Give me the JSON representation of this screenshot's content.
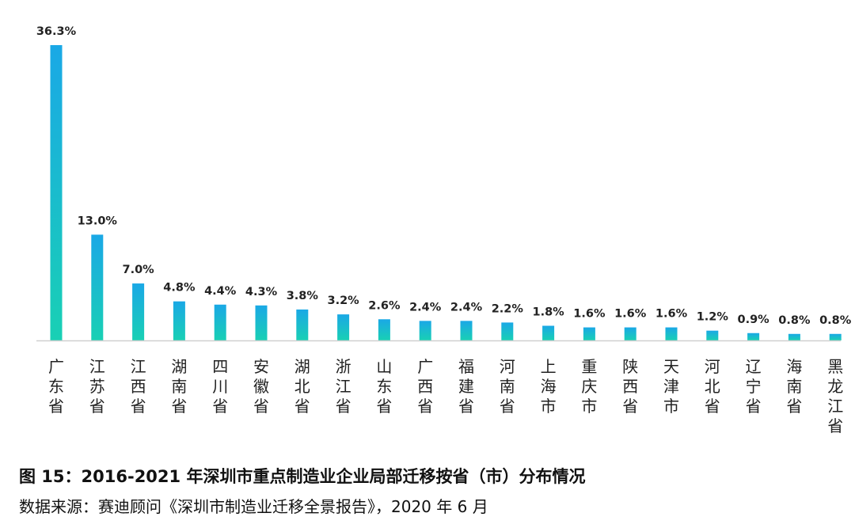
{
  "chart_data": {
    "type": "bar",
    "categories": [
      "广东省",
      "江苏省",
      "江西省",
      "湖南省",
      "四川省",
      "安徽省",
      "湖北省",
      "浙江省",
      "山东省",
      "广西省",
      "福建省",
      "河南省",
      "上海市",
      "重庆市",
      "陕西省",
      "天津市",
      "河北省",
      "辽宁省",
      "海南省",
      "黑龙江省"
    ],
    "values": [
      36.3,
      13.0,
      7.0,
      4.8,
      4.4,
      4.3,
      3.8,
      3.2,
      2.6,
      2.4,
      2.4,
      2.2,
      1.8,
      1.6,
      1.6,
      1.6,
      1.2,
      0.9,
      0.8,
      0.8
    ],
    "data_labels": [
      "36.3%",
      "13.0%",
      "7.0%",
      "4.8%",
      "4.4%",
      "4.3%",
      "3.8%",
      "3.2%",
      "2.6%",
      "2.4%",
      "2.4%",
      "2.2%",
      "1.8%",
      "1.6%",
      "1.6%",
      "1.6%",
      "1.2%",
      "0.9%",
      "0.8%",
      "0.8%"
    ],
    "ylim": [
      0,
      36.3
    ],
    "grid": false,
    "colors": {
      "bar_top": "#1aa8e6",
      "bar_bottom": "#19d0b4",
      "baseline": "#d0d0d0"
    }
  },
  "caption": {
    "title": "图 15：2016-2021 年深圳市重点制造业企业局部迁移按省（市）分布情况",
    "source": "数据来源：赛迪顾问《深圳市制造业迁移全景报告》，2020 年 6 月"
  }
}
